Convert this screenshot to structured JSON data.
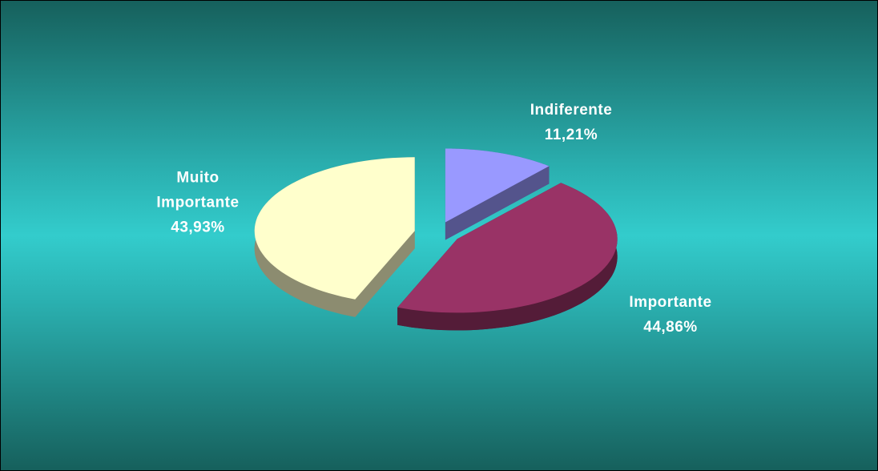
{
  "chart_data": {
    "type": "pie3d",
    "categories": [
      "Indiferente",
      "Importante",
      "Muito Importante"
    ],
    "values": [
      11.21,
      44.86,
      43.93
    ],
    "value_labels": [
      "11,21%",
      "44,86%",
      "43,93%"
    ],
    "colors": [
      "#9999ff",
      "#993366",
      "#ffffcc"
    ]
  }
}
